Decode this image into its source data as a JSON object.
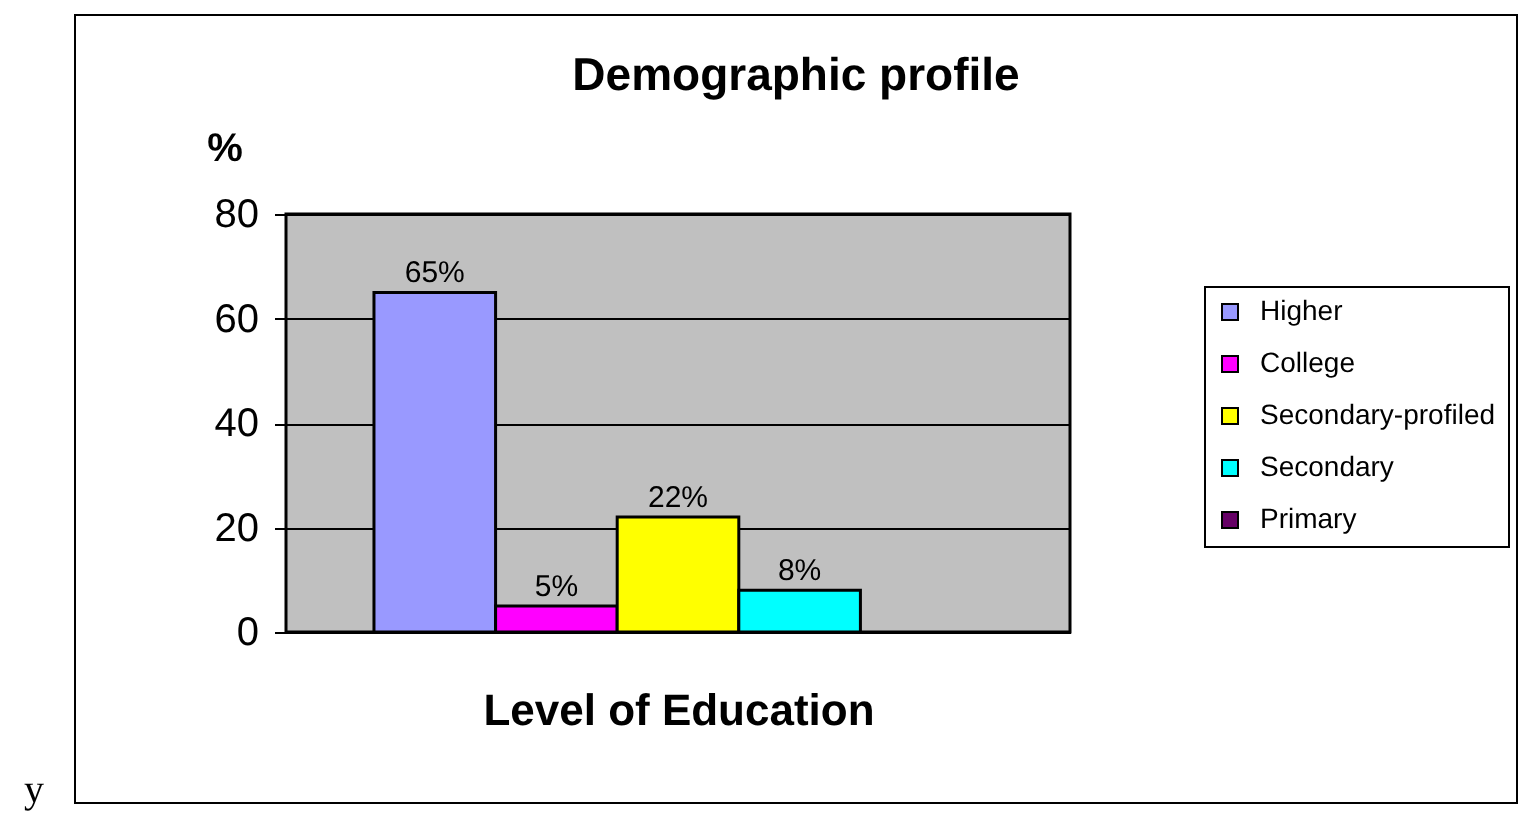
{
  "chart_data": {
    "type": "bar",
    "title": "Demographic profile",
    "ylabel": "%",
    "xlabel": "Level of Education",
    "categories": [
      null
    ],
    "series": [
      {
        "name": "Higher",
        "color": "#9999ff",
        "values": [
          65
        ],
        "value_labels": [
          "65%"
        ]
      },
      {
        "name": "College",
        "color": "#ff00ff",
        "values": [
          5
        ],
        "value_labels": [
          "5%"
        ]
      },
      {
        "name": "Secondary-profiled",
        "color": "#ffff00",
        "values": [
          22
        ],
        "value_labels": [
          "22%"
        ]
      },
      {
        "name": "Secondary",
        "color": "#00ffff",
        "values": [
          8
        ],
        "value_labels": [
          "8%"
        ]
      },
      {
        "name": "Primary",
        "color": "#660066",
        "values": [
          null
        ],
        "value_labels": [
          null
        ]
      }
    ],
    "ylim": [
      0,
      80
    ],
    "yticks": [
      0,
      20,
      40,
      60,
      80
    ],
    "grid": "y",
    "legend": "right",
    "annotations": [
      "y"
    ]
  }
}
